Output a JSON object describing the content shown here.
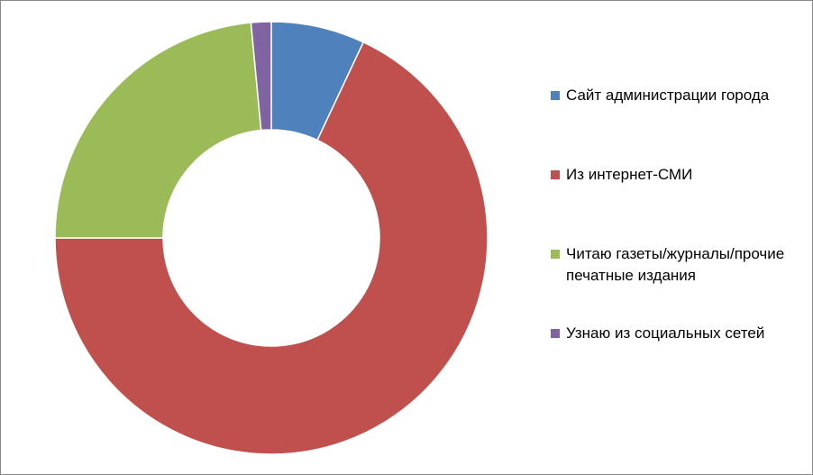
{
  "chart_data": {
    "type": "donut",
    "categories": [
      "Сайт администрации города",
      "Из интернет-СМИ",
      "Читаю газеты/журналы/прочие печатные издания",
      "Узнаю из социальных сетей"
    ],
    "values": [
      7,
      68,
      23.5,
      1.5
    ],
    "colors": [
      "#4f81bd",
      "#c0504d",
      "#9bbb59",
      "#8064a2"
    ],
    "legend": "right"
  }
}
